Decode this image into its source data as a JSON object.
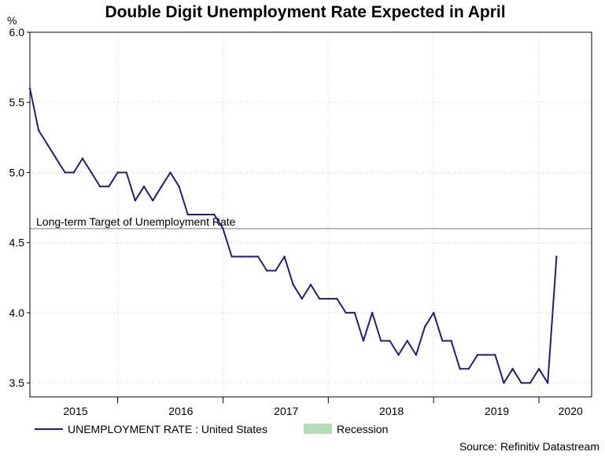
{
  "chart_data": {
    "type": "line",
    "title": "Double Digit Unemployment Rate Expected in April",
    "ylabel": "%",
    "source": "Source: Refinitiv Datastream",
    "ylim": [
      3.4,
      6.0
    ],
    "xlim": [
      2014.917,
      2020.25
    ],
    "yticks": [
      3.5,
      4.0,
      4.5,
      5.0,
      5.5,
      6.0
    ],
    "ytick_labels": [
      "3.5",
      "4.0",
      "4.5",
      "5.0",
      "5.5",
      "6.0"
    ],
    "xtick_labels": [
      {
        "label": "2015",
        "x": 2015.35
      },
      {
        "label": "2016",
        "x": 2016.35
      },
      {
        "label": "2017",
        "x": 2017.35
      },
      {
        "label": "2018",
        "x": 2018.35
      },
      {
        "label": "2019",
        "x": 2019.35
      },
      {
        "label": "2020",
        "x": 2020.05
      }
    ],
    "year_boundaries": [
      2015.75,
      2016.75,
      2017.75,
      2018.75,
      2019.75
    ],
    "grid": true,
    "reference_line": {
      "value": 4.6,
      "label": "Long-term Target of Unemployment Rate",
      "color": "#a6a6a6"
    },
    "legend": {
      "placement": "bottom",
      "entries": [
        {
          "label": "UNEMPLOYMENT RATE : United States",
          "color": "#1f1f7a",
          "kind": "line"
        },
        {
          "label": "Recession",
          "color": "#b5dcb5",
          "kind": "area"
        }
      ]
    },
    "series": [
      {
        "name": "UNEMPLOYMENT RATE : United States",
        "color": "#1f1f7a",
        "x_start": "2014-12",
        "frequency": "monthly",
        "values": [
          5.6,
          5.3,
          5.2,
          5.1,
          5.0,
          5.0,
          5.1,
          5.0,
          4.9,
          4.9,
          5.0,
          5.0,
          4.8,
          4.9,
          4.8,
          4.9,
          5.0,
          4.9,
          4.7,
          4.7,
          4.7,
          4.7,
          4.6,
          4.4,
          4.4,
          4.4,
          4.4,
          4.3,
          4.3,
          4.4,
          4.2,
          4.1,
          4.2,
          4.1,
          4.1,
          4.1,
          4.0,
          4.0,
          3.8,
          4.0,
          3.8,
          3.8,
          3.7,
          3.8,
          3.7,
          3.9,
          4.0,
          3.8,
          3.8,
          3.6,
          3.6,
          3.7,
          3.7,
          3.7,
          3.5,
          3.6,
          3.5,
          3.5,
          3.6,
          3.5,
          4.4
        ]
      }
    ]
  }
}
